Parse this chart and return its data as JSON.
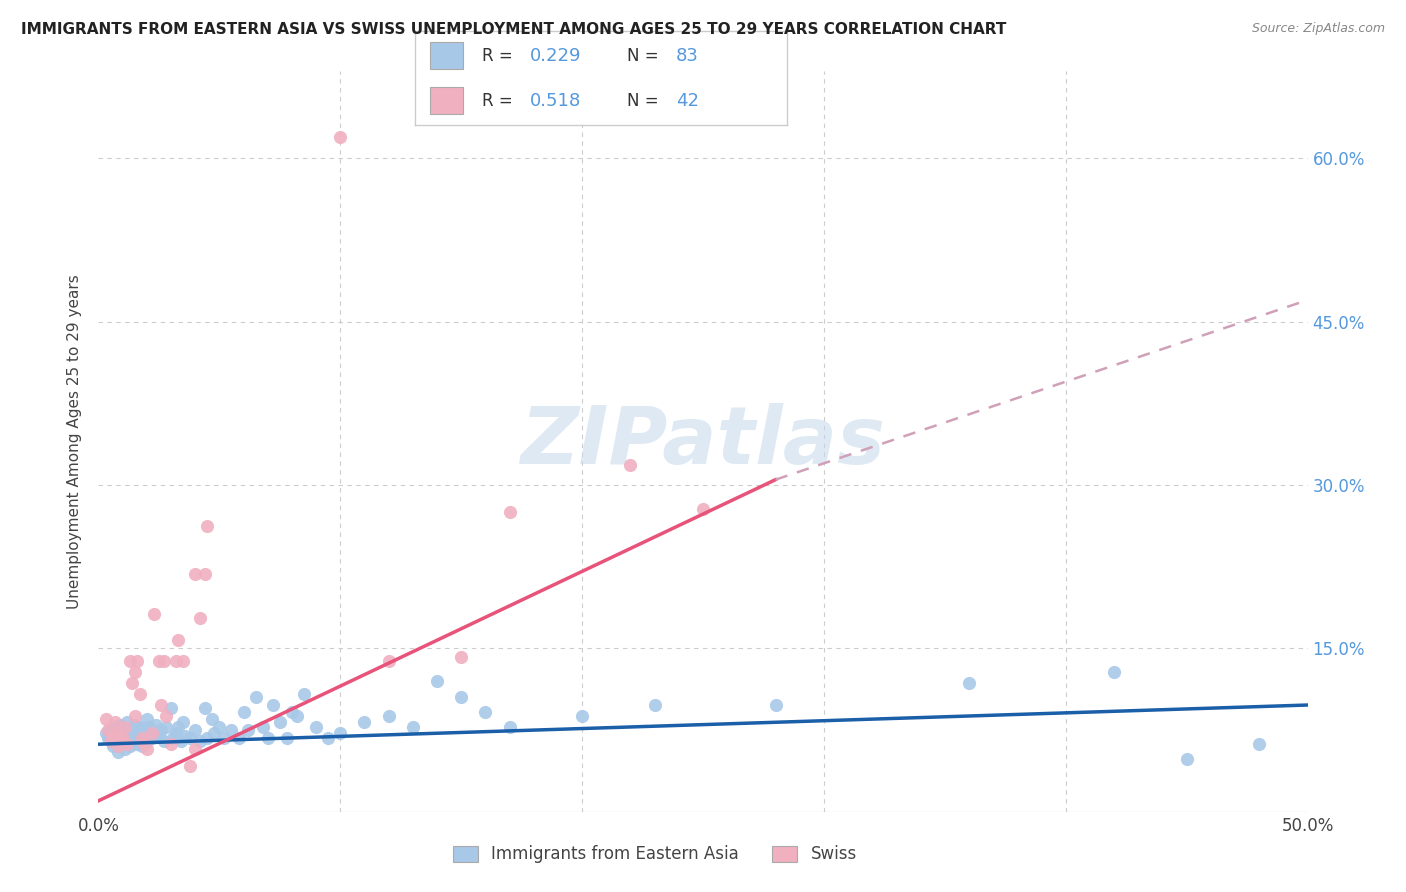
{
  "title": "IMMIGRANTS FROM EASTERN ASIA VS SWISS UNEMPLOYMENT AMONG AGES 25 TO 29 YEARS CORRELATION CHART",
  "source": "Source: ZipAtlas.com",
  "ylabel": "Unemployment Among Ages 25 to 29 years",
  "xlim": [
    0.0,
    0.5
  ],
  "ylim": [
    0.0,
    0.68
  ],
  "yticks": [
    0.0,
    0.15,
    0.3,
    0.45,
    0.6
  ],
  "ytick_labels": [
    "",
    "15.0%",
    "30.0%",
    "45.0%",
    "60.0%"
  ],
  "xticks": [
    0.0,
    0.1,
    0.2,
    0.3,
    0.4,
    0.5
  ],
  "xtick_labels": [
    "0.0%",
    "",
    "",
    "",
    "",
    "50.0%"
  ],
  "legend_label1": "Immigrants from Eastern Asia",
  "legend_label2": "Swiss",
  "color_blue": "#a8c8e8",
  "color_pink": "#f0b0c0",
  "line_blue": "#1a5fa8",
  "line_pink": "#e8537a",
  "line_dashed_color": "#d0a0b8",
  "scatter_blue": [
    [
      0.003,
      0.072
    ],
    [
      0.004,
      0.068
    ],
    [
      0.005,
      0.075
    ],
    [
      0.006,
      0.06
    ],
    [
      0.007,
      0.065
    ],
    [
      0.007,
      0.078
    ],
    [
      0.008,
      0.07
    ],
    [
      0.008,
      0.055
    ],
    [
      0.009,
      0.08
    ],
    [
      0.009,
      0.062
    ],
    [
      0.01,
      0.065
    ],
    [
      0.01,
      0.075
    ],
    [
      0.011,
      0.058
    ],
    [
      0.011,
      0.072
    ],
    [
      0.012,
      0.068
    ],
    [
      0.012,
      0.082
    ],
    [
      0.013,
      0.07
    ],
    [
      0.013,
      0.06
    ],
    [
      0.014,
      0.075
    ],
    [
      0.014,
      0.065
    ],
    [
      0.015,
      0.08
    ],
    [
      0.015,
      0.068
    ],
    [
      0.016,
      0.072
    ],
    [
      0.016,
      0.062
    ],
    [
      0.017,
      0.078
    ],
    [
      0.017,
      0.065
    ],
    [
      0.018,
      0.07
    ],
    [
      0.018,
      0.06
    ],
    [
      0.019,
      0.075
    ],
    [
      0.02,
      0.085
    ],
    [
      0.02,
      0.065
    ],
    [
      0.021,
      0.078
    ],
    [
      0.022,
      0.068
    ],
    [
      0.023,
      0.072
    ],
    [
      0.024,
      0.08
    ],
    [
      0.025,
      0.07
    ],
    [
      0.026,
      0.075
    ],
    [
      0.027,
      0.065
    ],
    [
      0.028,
      0.078
    ],
    [
      0.03,
      0.095
    ],
    [
      0.031,
      0.068
    ],
    [
      0.032,
      0.072
    ],
    [
      0.033,
      0.078
    ],
    [
      0.034,
      0.065
    ],
    [
      0.035,
      0.082
    ],
    [
      0.036,
      0.07
    ],
    [
      0.038,
      0.068
    ],
    [
      0.04,
      0.075
    ],
    [
      0.042,
      0.065
    ],
    [
      0.044,
      0.095
    ],
    [
      0.045,
      0.068
    ],
    [
      0.047,
      0.085
    ],
    [
      0.048,
      0.072
    ],
    [
      0.05,
      0.078
    ],
    [
      0.052,
      0.068
    ],
    [
      0.055,
      0.075
    ],
    [
      0.058,
      0.068
    ],
    [
      0.06,
      0.092
    ],
    [
      0.062,
      0.075
    ],
    [
      0.065,
      0.105
    ],
    [
      0.068,
      0.078
    ],
    [
      0.07,
      0.068
    ],
    [
      0.072,
      0.098
    ],
    [
      0.075,
      0.082
    ],
    [
      0.078,
      0.068
    ],
    [
      0.08,
      0.092
    ],
    [
      0.082,
      0.088
    ],
    [
      0.085,
      0.108
    ],
    [
      0.09,
      0.078
    ],
    [
      0.095,
      0.068
    ],
    [
      0.1,
      0.072
    ],
    [
      0.11,
      0.082
    ],
    [
      0.12,
      0.088
    ],
    [
      0.13,
      0.078
    ],
    [
      0.14,
      0.12
    ],
    [
      0.15,
      0.105
    ],
    [
      0.16,
      0.092
    ],
    [
      0.17,
      0.078
    ],
    [
      0.2,
      0.088
    ],
    [
      0.23,
      0.098
    ],
    [
      0.28,
      0.098
    ],
    [
      0.36,
      0.118
    ],
    [
      0.42,
      0.128
    ],
    [
      0.45,
      0.048
    ],
    [
      0.48,
      0.062
    ]
  ],
  "scatter_pink": [
    [
      0.003,
      0.085
    ],
    [
      0.004,
      0.075
    ],
    [
      0.005,
      0.065
    ],
    [
      0.006,
      0.07
    ],
    [
      0.007,
      0.082
    ],
    [
      0.008,
      0.06
    ],
    [
      0.008,
      0.072
    ],
    [
      0.009,
      0.065
    ],
    [
      0.01,
      0.068
    ],
    [
      0.011,
      0.078
    ],
    [
      0.012,
      0.062
    ],
    [
      0.013,
      0.138
    ],
    [
      0.014,
      0.118
    ],
    [
      0.015,
      0.128
    ],
    [
      0.015,
      0.088
    ],
    [
      0.016,
      0.138
    ],
    [
      0.017,
      0.108
    ],
    [
      0.018,
      0.068
    ],
    [
      0.019,
      0.062
    ],
    [
      0.02,
      0.058
    ],
    [
      0.022,
      0.072
    ],
    [
      0.023,
      0.182
    ],
    [
      0.025,
      0.138
    ],
    [
      0.026,
      0.098
    ],
    [
      0.027,
      0.138
    ],
    [
      0.028,
      0.088
    ],
    [
      0.03,
      0.062
    ],
    [
      0.032,
      0.138
    ],
    [
      0.033,
      0.158
    ],
    [
      0.035,
      0.138
    ],
    [
      0.038,
      0.042
    ],
    [
      0.04,
      0.058
    ],
    [
      0.04,
      0.218
    ],
    [
      0.042,
      0.178
    ],
    [
      0.044,
      0.218
    ],
    [
      0.045,
      0.262
    ],
    [
      0.1,
      0.62
    ],
    [
      0.12,
      0.138
    ],
    [
      0.15,
      0.142
    ],
    [
      0.17,
      0.275
    ],
    [
      0.22,
      0.318
    ],
    [
      0.25,
      0.278
    ]
  ],
  "trendline_blue": {
    "x_start": 0.0,
    "y_start": 0.062,
    "x_end": 0.5,
    "y_end": 0.098
  },
  "trendline_pink": {
    "x_start": 0.0,
    "y_start": 0.01,
    "x_end": 0.28,
    "y_end": 0.305
  },
  "trendline_pink_dash": {
    "x_start": 0.28,
    "y_start": 0.305,
    "x_end": 0.5,
    "y_end": 0.47
  },
  "watermark": "ZIPatlas",
  "background_color": "#ffffff",
  "grid_color": "#cccccc",
  "tick_color": "#5599dd",
  "title_color": "#222222",
  "label_color": "#444444",
  "source_color": "#888888"
}
